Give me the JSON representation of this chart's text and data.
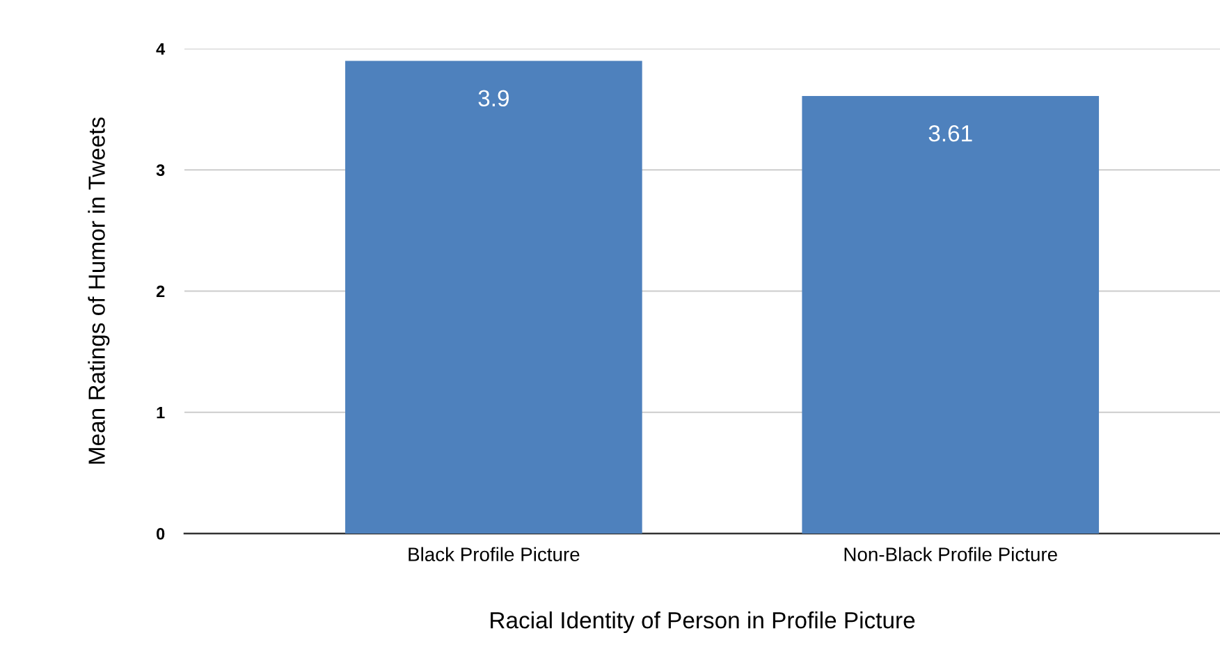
{
  "chart_data": {
    "type": "bar",
    "xlabel": "Racial Identity of Person in Profile Picture",
    "ylabel": "Mean Ratings of Humor in Tweets",
    "categories": [
      "Black Profile Picture",
      "Non-Black Profile Picture"
    ],
    "values": [
      3.9,
      3.61
    ],
    "color": "#4e81bd",
    "ylim": [
      0,
      4
    ],
    "yticks": [
      0,
      1,
      2,
      3,
      4
    ],
    "grid": "y",
    "data_labels": true
  }
}
